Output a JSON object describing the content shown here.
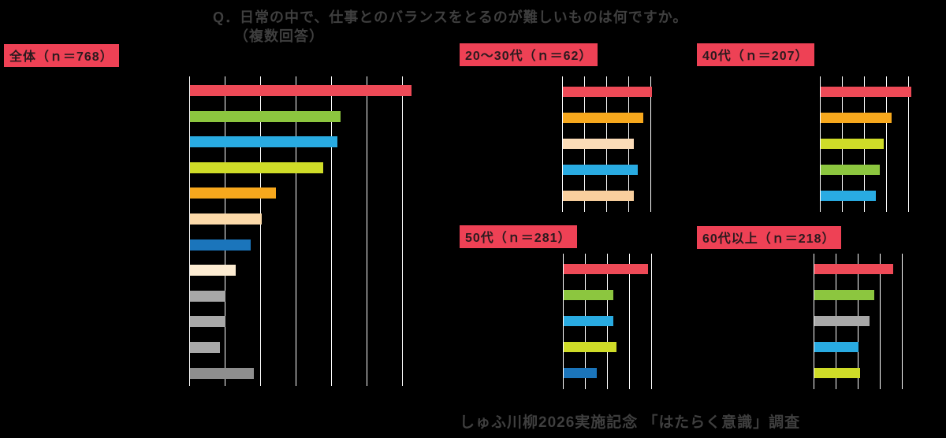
{
  "page": {
    "background": "#000000",
    "text_color": "#3f3f3f",
    "title_line1": "Q．日常の中で、仕事とのバランスをとるのが難しいものは何ですか。",
    "title_line2": "（複数回答）",
    "footer": "しゅふ川柳2026実施記念 「はたらく意識」調査",
    "badge": {
      "bg": "#ee4155",
      "text_color": "#2b1a1e"
    }
  },
  "chart_data": [
    {
      "id": "overall",
      "type": "bar",
      "orientation": "horizontal",
      "group_label": "全体（ｎ＝768）",
      "n": 768,
      "xlim": [
        0,
        60
      ],
      "grid_step": 10,
      "grid": true,
      "legend": "none",
      "categories_legible": false,
      "categories": [
        "",
        "",
        "",
        "",
        "",
        "",
        "",
        "",
        "",
        "",
        "",
        ""
      ],
      "values": [
        62.4,
        42.4,
        41.5,
        37.5,
        24.3,
        20.3,
        17.2,
        12.8,
        9.9,
        9.9,
        8.4,
        18.1
      ],
      "colors": [
        "#ee4a57",
        "#8cc63f",
        "#29abe2",
        "#cfdc28",
        "#f7a81d",
        "#fbd9a9",
        "#1b75bb",
        "#fdecd2",
        "#a8a8a8",
        "#a8a8a8",
        "#a8a8a8",
        "#8e8e8e"
      ]
    },
    {
      "id": "age-20-30",
      "type": "bar",
      "orientation": "horizontal",
      "group_label": "20〜30代（ｎ＝62）",
      "n": 62,
      "xlim": [
        0,
        40
      ],
      "grid_step": 10,
      "grid": true,
      "legend": "none",
      "categories_legible": false,
      "categories": [
        "",
        "",
        "",
        "",
        ""
      ],
      "values": [
        40.3,
        36.4,
        32.1,
        33.9,
        32.1
      ],
      "colors": [
        "#ee4a57",
        "#f7a81d",
        "#fbdcb8",
        "#29abe2",
        "#f9cf9e"
      ]
    },
    {
      "id": "age-40",
      "type": "bar",
      "orientation": "horizontal",
      "group_label": "40代（ｎ＝207）",
      "n": 207,
      "xlim": [
        0,
        40
      ],
      "grid_step": 10,
      "grid": true,
      "legend": "none",
      "categories_legible": false,
      "categories": [
        "",
        "",
        "",
        "",
        ""
      ],
      "values": [
        41.1,
        32.1,
        28.6,
        26.8,
        25.0
      ],
      "colors": [
        "#ee4a57",
        "#f7a81d",
        "#cfdc28",
        "#8cc63f",
        "#29abe2"
      ]
    },
    {
      "id": "age-50",
      "type": "bar",
      "orientation": "horizontal",
      "group_label": "50代（ｎ＝281）",
      "n": 281,
      "xlim": [
        0,
        40
      ],
      "grid_step": 10,
      "grid": true,
      "legend": "none",
      "categories_legible": false,
      "categories": [
        "",
        "",
        "",
        "",
        ""
      ],
      "values": [
        38.2,
        22.5,
        22.5,
        23.9,
        15.0
      ],
      "colors": [
        "#ee4a57",
        "#8cc63f",
        "#29abe2",
        "#cfdc28",
        "#1b75bb"
      ]
    },
    {
      "id": "age-60-plus",
      "type": "bar",
      "orientation": "horizontal",
      "group_label": "60代以上（ｎ＝218）",
      "n": 218,
      "xlim": [
        0,
        40
      ],
      "grid_step": 10,
      "grid": true,
      "legend": "none",
      "categories_legible": false,
      "categories": [
        "",
        "",
        "",
        "",
        ""
      ],
      "values": [
        35.7,
        27.1,
        25.0,
        20.0,
        20.7
      ],
      "colors": [
        "#ee4a57",
        "#8cc63f",
        "#a8a8a8",
        "#29abe2",
        "#cfdc28"
      ]
    }
  ]
}
